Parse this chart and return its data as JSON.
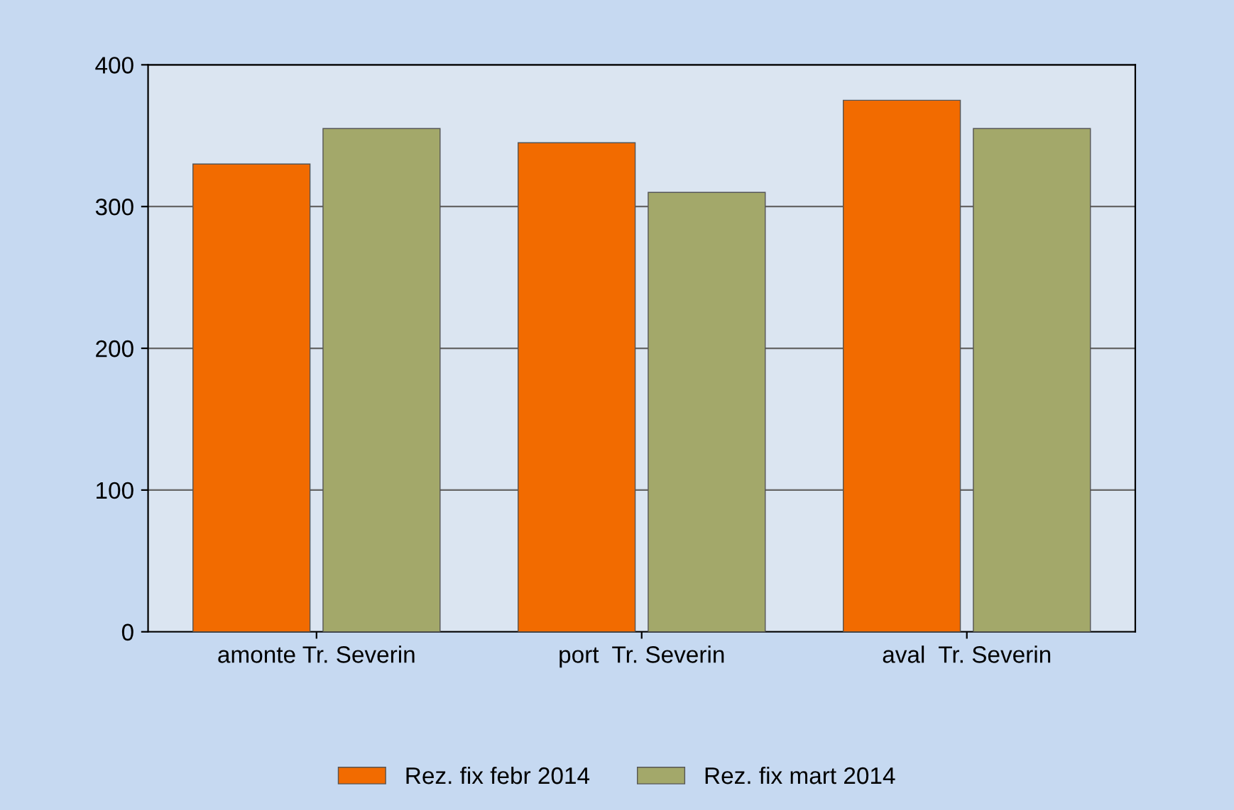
{
  "chart_data": {
    "type": "bar",
    "categories": [
      "amonte Tr. Severin",
      "port  Tr. Severin",
      "aval  Tr. Severin"
    ],
    "series": [
      {
        "name": "Rez. fix febr 2014",
        "color": "#f26b00",
        "values": [
          330,
          345,
          375
        ]
      },
      {
        "name": "Rez. fix mart 2014",
        "color": "#a3a86a",
        "values": [
          355,
          310,
          355
        ]
      }
    ],
    "ylim": [
      0,
      400
    ],
    "yticks": [
      0,
      100,
      200,
      300,
      400
    ],
    "grid": "y",
    "legend": "bottom"
  }
}
